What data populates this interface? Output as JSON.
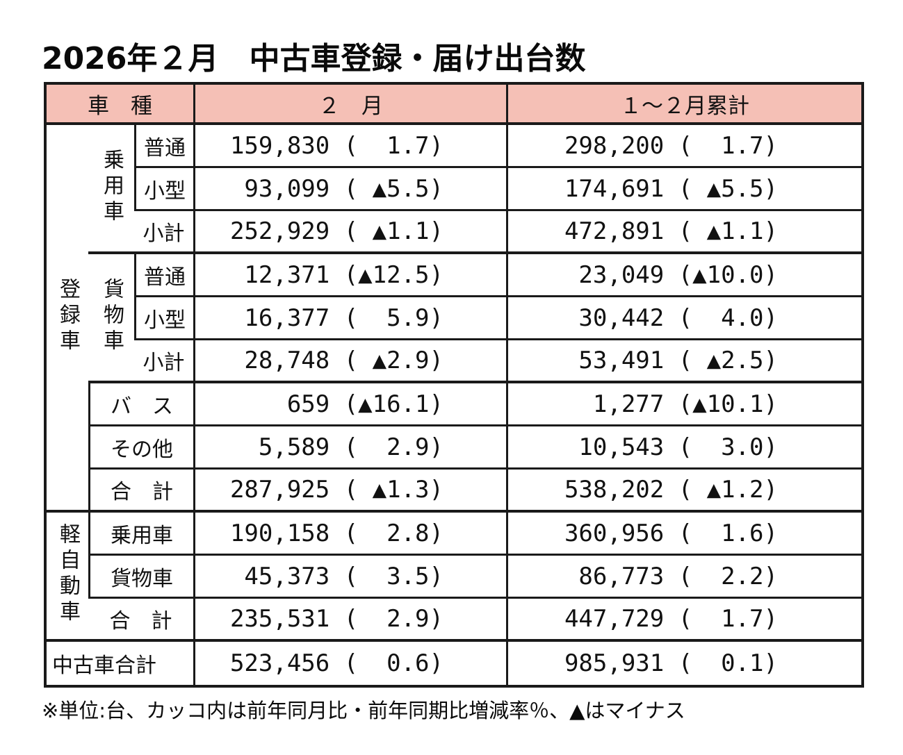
{
  "title": "2026年２月　中古車登録・届け出台数",
  "table": {
    "header": {
      "vehicle": "車　種",
      "feb": "２　月",
      "cum": "１～２月累計"
    },
    "groups": {
      "registered": "登録車",
      "passenger": "乗用車",
      "cargo": "貨物車",
      "kei": "軽自動車"
    },
    "rows": [
      {
        "label": "普通",
        "feb": "159,830 (  1.7)",
        "cum": "298,200 (  1.7)"
      },
      {
        "label": "小型",
        "feb": "93,099 ( ▲5.5)",
        "cum": "174,691 ( ▲5.5)"
      },
      {
        "label": "小計",
        "feb": "252,929 ( ▲1.1)",
        "cum": "472,891 ( ▲1.1)"
      },
      {
        "label": "普通",
        "feb": "12,371 (▲12.5)",
        "cum": "23,049 (▲10.0)"
      },
      {
        "label": "小型",
        "feb": "16,377 (  5.9)",
        "cum": "30,442 (  4.0)"
      },
      {
        "label": "小計",
        "feb": "28,748 ( ▲2.9)",
        "cum": "53,491 ( ▲2.5)"
      },
      {
        "label": "バ　ス",
        "feb": "659 (▲16.1)",
        "cum": "1,277 (▲10.1)"
      },
      {
        "label": "その他",
        "feb": "5,589 (  2.9)",
        "cum": "10,543 (  3.0)"
      },
      {
        "label": "合　計",
        "feb": "287,925 ( ▲1.3)",
        "cum": "538,202 ( ▲1.2)"
      },
      {
        "label": "乗用車",
        "feb": "190,158 (  2.8)",
        "cum": "360,956 (  1.6)"
      },
      {
        "label": "貨物車",
        "feb": "45,373 (  3.5)",
        "cum": "86,773 (  2.2)"
      },
      {
        "label": "合　計",
        "feb": "235,531 (  2.9)",
        "cum": "447,729 (  1.7)"
      },
      {
        "label": "中古車合計",
        "feb": "523,456 (  0.6)",
        "cum": "985,931 (  0.1)"
      }
    ]
  },
  "footnote": "※単位:台、カッコ内は前年同月比・前年同期比増減率％、▲はマイナス",
  "colors": {
    "header_bg": "#F5C0B6",
    "border": "#1A1A1A",
    "background": "#FFFFFF"
  },
  "chart_data": {
    "type": "table",
    "title": "2026年２月　中古車登録・届け出台数",
    "columns": [
      "車種",
      "２月 台数",
      "２月 前年同月比%",
      "１～２月累計 台数",
      "１～２月累計 前年同期比%"
    ],
    "rows": [
      [
        "登録車 乗用車 普通",
        159830,
        1.7,
        298200,
        1.7
      ],
      [
        "登録車 乗用車 小型",
        93099,
        -5.5,
        174691,
        -5.5
      ],
      [
        "登録車 乗用車 小計",
        252929,
        -1.1,
        472891,
        -1.1
      ],
      [
        "登録車 貨物車 普通",
        12371,
        -12.5,
        23049,
        -10.0
      ],
      [
        "登録車 貨物車 小型",
        16377,
        5.9,
        30442,
        4.0
      ],
      [
        "登録車 貨物車 小計",
        28748,
        -2.9,
        53491,
        -2.5
      ],
      [
        "登録車 バス",
        659,
        -16.1,
        1277,
        -10.1
      ],
      [
        "登録車 その他",
        5589,
        2.9,
        10543,
        3.0
      ],
      [
        "登録車 合計",
        287925,
        -1.3,
        538202,
        -1.2
      ],
      [
        "軽自動車 乗用車",
        190158,
        2.8,
        360956,
        1.6
      ],
      [
        "軽自動車 貨物車",
        45373,
        3.5,
        86773,
        2.2
      ],
      [
        "軽自動車 合計",
        235531,
        2.9,
        447729,
        1.7
      ],
      [
        "中古車合計",
        523456,
        0.6,
        985931,
        0.1
      ]
    ],
    "notes": "単位:台、カッコ内は前年同月比・前年同期比増減率％、▲はマイナス"
  }
}
